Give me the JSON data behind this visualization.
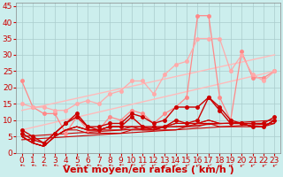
{
  "xlabel": "Vent moyen/en rafales ( km/h )",
  "background_color": "#cceeed",
  "grid_color": "#aacccc",
  "x_ticks": [
    0,
    1,
    2,
    3,
    4,
    5,
    6,
    7,
    8,
    9,
    10,
    11,
    12,
    13,
    14,
    15,
    16,
    17,
    18,
    19,
    20,
    21,
    22,
    23
  ],
  "ylim": [
    0,
    46
  ],
  "yticks": [
    0,
    5,
    10,
    15,
    20,
    25,
    30,
    35,
    40,
    45
  ],
  "series": [
    {
      "y": [
        22,
        14,
        12,
        12,
        6,
        11,
        7,
        7,
        11,
        10,
        13,
        12,
        9,
        12,
        14,
        17,
        42,
        42,
        17,
        10,
        31,
        23,
        23,
        25
      ],
      "color": "#ff8888",
      "linewidth": 0.9,
      "marker": "o",
      "markersize": 2.5
    },
    {
      "y": [
        15,
        14,
        14,
        13,
        13,
        15,
        16,
        15,
        18,
        19,
        22,
        22,
        18,
        24,
        27,
        28,
        35,
        35,
        35,
        25,
        30,
        24,
        22,
        25
      ],
      "color": "#ffaaaa",
      "linewidth": 0.9,
      "marker": "o",
      "markersize": 2.5
    },
    {
      "y": [
        7,
        5,
        3,
        6,
        9,
        12,
        8,
        8,
        9,
        9,
        12,
        11,
        9,
        10,
        14,
        14,
        14,
        17,
        14,
        10,
        9,
        9,
        9,
        11
      ],
      "color": "#cc0000",
      "linewidth": 1.0,
      "marker": "o",
      "markersize": 2.5
    },
    {
      "y": [
        6,
        4,
        3,
        6,
        9,
        11,
        8,
        7,
        8,
        8,
        11,
        8,
        8,
        8,
        10,
        9,
        10,
        17,
        13,
        9,
        9,
        8,
        8,
        10
      ],
      "color": "#cc0000",
      "linewidth": 1.0,
      "marker": "o",
      "markersize": 2.5
    },
    {
      "y": [
        5,
        3,
        2,
        5,
        7,
        7,
        6,
        6,
        6,
        6,
        7,
        7,
        7,
        7,
        7,
        8,
        8,
        9,
        8,
        8,
        8,
        8,
        8,
        9
      ],
      "color": "#cc0000",
      "linewidth": 0.8,
      "marker": null,
      "markersize": 0
    },
    {
      "y": [
        5,
        3,
        2,
        5,
        7,
        8,
        7,
        7,
        7,
        7,
        8,
        7,
        7,
        8,
        8,
        8,
        9,
        9,
        9,
        9,
        9,
        8,
        8,
        10
      ],
      "color": "#cc0000",
      "linewidth": 0.8,
      "marker": null,
      "markersize": 0
    },
    {
      "y": [
        5,
        3,
        2,
        5,
        7,
        8,
        7,
        7,
        8,
        8,
        8,
        8,
        7,
        8,
        9,
        9,
        9,
        10,
        9,
        9,
        9,
        8,
        8,
        10
      ],
      "color": "#cc0000",
      "linewidth": 0.8,
      "marker": null,
      "markersize": 0
    },
    {
      "y": [
        5,
        3,
        2,
        5,
        7,
        8,
        7,
        7,
        8,
        8,
        8,
        8,
        7,
        8,
        9,
        9,
        9,
        10,
        9,
        9,
        9,
        8,
        8,
        10
      ],
      "color": "#cc0000",
      "linewidth": 0.8,
      "marker": null,
      "markersize": 0
    }
  ],
  "trend_lines": [
    {
      "x0": 0,
      "y0": 7,
      "x1": 23,
      "y1": 25,
      "color": "#ffbbbb",
      "linewidth": 1.0
    },
    {
      "x0": 0,
      "y0": 13,
      "x1": 23,
      "y1": 30,
      "color": "#ffbbbb",
      "linewidth": 1.0
    },
    {
      "x0": 0,
      "y0": 5,
      "x1": 23,
      "y1": 10,
      "color": "#cc0000",
      "linewidth": 0.8
    },
    {
      "x0": 0,
      "y0": 4,
      "x1": 23,
      "y1": 9,
      "color": "#cc0000",
      "linewidth": 0.8
    }
  ],
  "arrow_color": "#cc0000",
  "xlabel_color": "#cc0000",
  "xlabel_fontsize": 8,
  "tick_color": "#cc0000",
  "tick_fontsize": 6.5
}
